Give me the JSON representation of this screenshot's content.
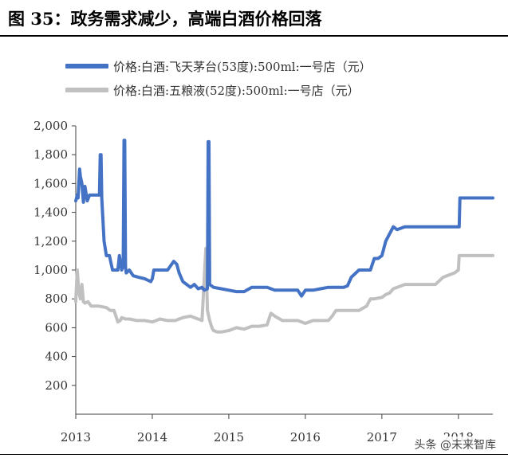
{
  "figure": {
    "title": "图 35：政务需求减少，高端白酒价格回落"
  },
  "watermark": {
    "text": "头条 @未来智库"
  },
  "colors": {
    "series_1": "#4472c4",
    "series_2": "#c0c0c0",
    "axis": "#404040"
  },
  "chart_data": {
    "type": "line",
    "title": "",
    "xlabel": "",
    "ylabel": "",
    "xlim": [
      2013.0,
      2018.45
    ],
    "ylim": [
      0,
      2000
    ],
    "x_ticks": [
      "2013",
      "2014",
      "2015",
      "2016",
      "2017",
      "2018"
    ],
    "y_ticks": [
      "200",
      "400",
      "600",
      "800",
      "1,000",
      "1,200",
      "1,400",
      "1,600",
      "1,800",
      "2,000"
    ],
    "legend_position": "top",
    "grid": false,
    "series": [
      {
        "name": "价格:白酒:飞天茅台(53度):500ml:一号店（元）",
        "x": [
          2013.0,
          2013.02,
          2013.03,
          2013.05,
          2013.06,
          2013.08,
          2013.1,
          2013.12,
          2013.15,
          2013.18,
          2013.25,
          2013.31,
          2013.32,
          2013.33,
          2013.34,
          2013.37,
          2013.4,
          2013.44,
          2013.48,
          2013.52,
          2013.55,
          2013.57,
          2013.6,
          2013.62,
          2013.63,
          2013.64,
          2013.65,
          2013.66,
          2013.7,
          2013.75,
          2013.82,
          2013.9,
          2013.98,
          2014.0,
          2014.02,
          2014.1,
          2014.2,
          2014.28,
          2014.32,
          2014.35,
          2014.4,
          2014.45,
          2014.5,
          2014.55,
          2014.6,
          2014.65,
          2014.68,
          2014.72,
          2014.73,
          2014.74,
          2014.75,
          2014.8,
          2014.9,
          2015.0,
          2015.1,
          2015.2,
          2015.3,
          2015.4,
          2015.48,
          2015.5,
          2015.6,
          2015.7,
          2015.8,
          2015.9,
          2015.95,
          2016.0,
          2016.1,
          2016.2,
          2016.3,
          2016.4,
          2016.45,
          2016.5,
          2016.55,
          2016.6,
          2016.7,
          2016.8,
          2016.85,
          2016.9,
          2016.95,
          2017.0,
          2017.05,
          2017.1,
          2017.15,
          2017.2,
          2017.3,
          2017.4,
          2017.5,
          2017.6,
          2017.7,
          2017.8,
          2017.9,
          2018.0,
          2018.01,
          2018.02,
          2018.1,
          2018.2,
          2018.3,
          2018.45
        ],
        "values": [
          1480,
          1520,
          1500,
          1700,
          1650,
          1600,
          1470,
          1580,
          1480,
          1520,
          1520,
          1520,
          1800,
          1800,
          1500,
          1200,
          1100,
          1100,
          1000,
          1000,
          1000,
          1100,
          1000,
          1030,
          1900,
          1900,
          1020,
          980,
          1000,
          960,
          950,
          940,
          920,
          940,
          1000,
          1000,
          1000,
          1060,
          1040,
          980,
          920,
          900,
          880,
          900,
          870,
          880,
          860,
          870,
          1890,
          1890,
          900,
          880,
          870,
          860,
          850,
          850,
          880,
          880,
          880,
          880,
          860,
          860,
          860,
          860,
          820,
          860,
          860,
          870,
          880,
          880,
          880,
          880,
          890,
          950,
          1000,
          1000,
          1000,
          1080,
          1080,
          1100,
          1200,
          1250,
          1300,
          1280,
          1300,
          1300,
          1300,
          1300,
          1300,
          1300,
          1300,
          1300,
          1300,
          1500,
          1500,
          1500,
          1500,
          1500
        ]
      },
      {
        "name": "价格:白酒:五粮液(52度):500ml:一号店（元）",
        "x": [
          2013.0,
          2013.02,
          2013.04,
          2013.06,
          2013.08,
          2013.1,
          2013.12,
          2013.16,
          2013.2,
          2013.25,
          2013.3,
          2013.4,
          2013.45,
          2013.5,
          2013.55,
          2013.58,
          2013.6,
          2013.65,
          2013.7,
          2013.8,
          2013.9,
          2014.0,
          2014.1,
          2014.2,
          2014.3,
          2014.4,
          2014.5,
          2014.6,
          2014.65,
          2014.7,
          2014.72,
          2014.75,
          2014.78,
          2014.8,
          2014.85,
          2014.9,
          2015.0,
          2015.1,
          2015.2,
          2015.3,
          2015.4,
          2015.5,
          2015.55,
          2015.6,
          2015.7,
          2015.8,
          2015.9,
          2016.0,
          2016.1,
          2016.2,
          2016.3,
          2016.35,
          2016.4,
          2016.5,
          2016.6,
          2016.7,
          2016.8,
          2016.85,
          2016.9,
          2017.0,
          2017.05,
          2017.1,
          2017.15,
          2017.2,
          2017.3,
          2017.4,
          2017.5,
          2017.6,
          2017.65,
          2017.7,
          2017.8,
          2017.9,
          2017.95,
          2018.0,
          2018.01,
          2018.1,
          2018.2,
          2018.3,
          2018.45
        ],
        "values": [
          780,
          1000,
          850,
          800,
          900,
          780,
          770,
          780,
          750,
          750,
          750,
          740,
          720,
          720,
          640,
          650,
          670,
          660,
          660,
          650,
          650,
          640,
          660,
          650,
          650,
          670,
          680,
          660,
          650,
          1150,
          720,
          650,
          600,
          580,
          570,
          570,
          580,
          600,
          590,
          610,
          610,
          620,
          700,
          680,
          650,
          650,
          650,
          630,
          650,
          650,
          650,
          680,
          720,
          720,
          720,
          720,
          750,
          800,
          800,
          810,
          830,
          840,
          870,
          880,
          900,
          900,
          900,
          900,
          900,
          900,
          950,
          970,
          980,
          1000,
          1100,
          1100,
          1100,
          1100,
          1100
        ]
      }
    ]
  }
}
